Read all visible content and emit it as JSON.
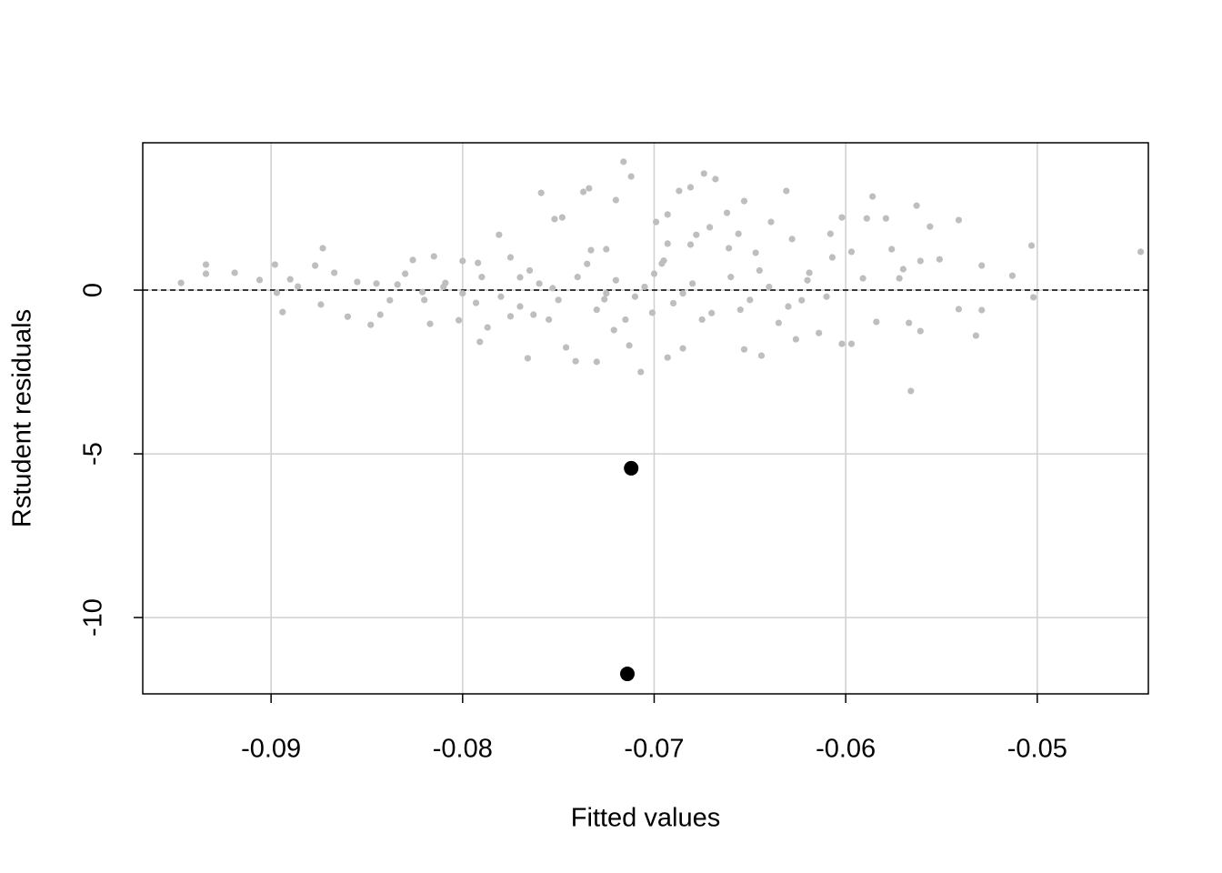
{
  "chart_data": {
    "type": "scatter",
    "x_label": "Fitted values",
    "y_label": "Rstudent residuals",
    "xlim": [
      -0.0967,
      -0.0442
    ],
    "ylim": [
      -12.33,
      4.5
    ],
    "xticks": [
      -0.09,
      -0.08,
      -0.07,
      -0.06,
      -0.05
    ],
    "yticks": [
      -10,
      -5,
      0
    ],
    "grid": true,
    "reference_line_y": 0,
    "series": [
      {
        "color": "#bebebe",
        "x": [
          -0.0947,
          -0.0934,
          -0.0934,
          -0.0919,
          -0.0906,
          -0.0898,
          -0.0894,
          -0.0897,
          -0.089,
          -0.0886,
          -0.0873,
          -0.0877,
          -0.0874,
          -0.0867,
          -0.086,
          -0.0855,
          -0.0848,
          -0.0843,
          -0.0838,
          -0.0834,
          -0.0826,
          -0.0821,
          -0.0817,
          -0.0815,
          -0.0809,
          -0.08,
          -0.0802,
          -0.0793,
          -0.0792,
          -0.0787,
          -0.0781,
          -0.0791,
          -0.0775,
          -0.077,
          -0.0766,
          -0.0763,
          -0.0759,
          -0.0753,
          -0.0752,
          -0.0748,
          -0.0746,
          -0.0741,
          -0.0737,
          -0.0734,
          -0.0733,
          -0.073,
          -0.0726,
          -0.0725,
          -0.0721,
          -0.072,
          -0.0716,
          -0.0712,
          -0.0713,
          -0.0707,
          -0.0701,
          -0.0699,
          -0.0696,
          -0.0693,
          -0.0693,
          -0.0693,
          -0.0687,
          -0.0681,
          -0.0681,
          -0.0685,
          -0.0678,
          -0.0674,
          -0.0668,
          -0.0671,
          -0.0662,
          -0.0661,
          -0.0653,
          -0.0656,
          -0.0653,
          -0.0647,
          -0.0644,
          -0.0639,
          -0.0635,
          -0.0631,
          -0.0628,
          -0.0626,
          -0.0623,
          -0.0619,
          -0.0614,
          -0.0608,
          -0.0607,
          -0.0602,
          -0.0602,
          -0.0597,
          -0.0597,
          -0.0591,
          -0.0589,
          -0.0586,
          -0.0584,
          -0.0579,
          -0.0576,
          -0.0572,
          -0.057,
          -0.0567,
          -0.0566,
          -0.0563,
          -0.0561,
          -0.0561,
          -0.0556,
          -0.0551,
          -0.0541,
          -0.0541,
          -0.0532,
          -0.0529,
          -0.0529,
          -0.0513,
          -0.0503,
          -0.0502,
          -0.0446,
          -0.078,
          -0.077,
          -0.076,
          -0.075,
          -0.074,
          -0.073,
          -0.072,
          -0.071,
          -0.07,
          -0.069,
          -0.068,
          -0.067,
          -0.066,
          -0.065,
          -0.064,
          -0.063,
          -0.062,
          -0.061,
          -0.079,
          -0.08,
          -0.081,
          -0.082,
          -0.083,
          -0.0845,
          -0.0715,
          -0.0735,
          -0.0755,
          -0.0675,
          -0.0695,
          -0.0655,
          -0.0645,
          -0.0725,
          -0.0705,
          -0.0685,
          -0.0765,
          -0.0775
        ],
        "values": [
          0.22,
          0.78,
          0.5,
          0.53,
          0.31,
          0.78,
          -0.67,
          -0.08,
          0.33,
          0.11,
          1.28,
          0.75,
          -0.44,
          0.53,
          -0.81,
          0.25,
          -1.06,
          -0.75,
          -0.31,
          0.17,
          0.92,
          -0.06,
          -1.03,
          1.03,
          0.22,
          0.89,
          -0.92,
          -0.39,
          0.83,
          -1.14,
          1.69,
          -1.58,
          1.0,
          0.39,
          -2.08,
          -0.75,
          2.97,
          0.06,
          2.17,
          2.22,
          -1.75,
          -2.17,
          3.0,
          3.11,
          1.22,
          -2.19,
          -0.28,
          1.25,
          -1.22,
          2.75,
          3.92,
          3.47,
          -1.69,
          -2.5,
          -0.69,
          2.08,
          0.81,
          2.31,
          -2.06,
          1.42,
          3.03,
          3.14,
          1.39,
          -1.78,
          1.69,
          3.56,
          3.39,
          1.92,
          2.36,
          1.28,
          2.72,
          1.72,
          -1.81,
          1.14,
          -2.0,
          2.08,
          -1.0,
          3.03,
          1.56,
          -1.5,
          -0.31,
          0.53,
          -1.31,
          1.72,
          1.0,
          2.22,
          -1.64,
          -1.64,
          1.17,
          0.36,
          2.19,
          2.86,
          -0.97,
          2.19,
          1.25,
          0.36,
          0.64,
          -1.0,
          -3.08,
          2.58,
          -1.25,
          0.89,
          1.94,
          0.94,
          2.14,
          -0.58,
          -1.39,
          0.75,
          -0.61,
          0.44,
          1.36,
          -0.22,
          1.17,
          -0.2,
          -0.5,
          0.2,
          -0.3,
          0.4,
          -0.6,
          0.3,
          -0.2,
          0.5,
          -0.4,
          0.2,
          -0.7,
          0.4,
          -0.3,
          0.1,
          -0.5,
          0.3,
          -0.2,
          0.4,
          -0.1,
          0.1,
          -0.3,
          0.5,
          0.2,
          -0.9,
          0.8,
          -0.9,
          -0.9,
          0.9,
          -0.6,
          0.6,
          -0.1,
          0.1,
          -0.1,
          0.6,
          -0.8
        ]
      },
      {
        "color": "#000000",
        "x": [
          -0.0712,
          -0.0714
        ],
        "values": [
          -5.44,
          -11.72
        ]
      }
    ]
  }
}
